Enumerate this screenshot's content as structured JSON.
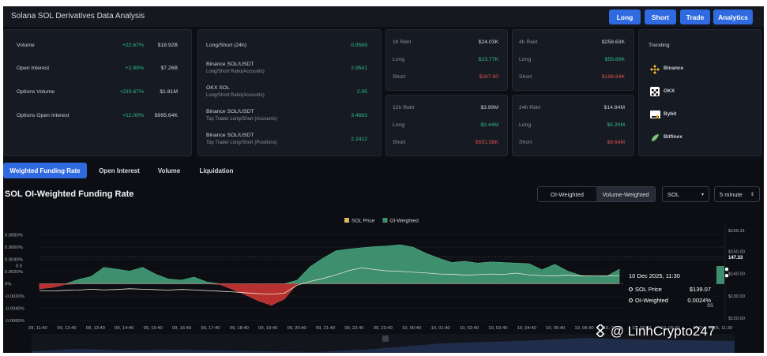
{
  "app": {
    "title": "Solana SOL Derivatives Data Analysis"
  },
  "top_buttons": [
    "Long",
    "Short",
    "Trade",
    "Analytics"
  ],
  "market": [
    {
      "label": "Volume",
      "change": "+22.67%",
      "value": "$18.92B"
    },
    {
      "label": "Open Interest",
      "change": "+2.89%",
      "value": "$7.26B"
    },
    {
      "label": "Options Volume",
      "change": "+233.67%",
      "value": "$1.81M"
    },
    {
      "label": "Options Open Interest",
      "change": "+12.00%",
      "value": "$995.64K"
    }
  ],
  "ratios": [
    {
      "title": "Long/Short (24h)",
      "subtitle": "",
      "value": "0.9569"
    },
    {
      "title": "Binance SOL/USDT",
      "subtitle": "Long/Short Ratio(Accounts)",
      "value": "2.9541"
    },
    {
      "title": "OKX SOL",
      "subtitle": "Long/Short Ratio(Accounts)",
      "value": "2.95"
    },
    {
      "title": "Binance SOL/USDT",
      "subtitle": "Top Trader Long/Short (Accounts)",
      "value": "3.4683"
    },
    {
      "title": "Binance SOL/USDT",
      "subtitle": "Top Trader Long/Short (Positions)",
      "value": "2.2412"
    }
  ],
  "rekt": [
    {
      "label": "1h Rekt",
      "total": "$24.03K",
      "long_label": "Long",
      "long": "$23.77K",
      "short_label": "Short",
      "short": "$267.90"
    },
    {
      "label": "4h Rekt",
      "total": "$258.63K",
      "long_label": "Long",
      "long": "$59.80K",
      "short_label": "Short",
      "short": "$198.84K"
    },
    {
      "label": "12h Rekt",
      "total": "$3.99M",
      "long_label": "Long",
      "long": "$3.44M",
      "short_label": "Short",
      "short": "$551.58K"
    },
    {
      "label": "24h Rekt",
      "total": "$14.84M",
      "long_label": "Long",
      "long": "$5.20M",
      "short_label": "Short",
      "short": "$9.64M"
    }
  ],
  "trending": {
    "title": "Trending",
    "items": [
      {
        "name": "Binance",
        "icon": "binance-logo-icon",
        "color": "#f3ba2f"
      },
      {
        "name": "OKX",
        "icon": "okx-logo-icon",
        "color": "#ffffff"
      },
      {
        "name": "Bybit",
        "icon": "bybit-logo-icon",
        "color": "#ffffff"
      },
      {
        "name": "Bitfinex",
        "icon": "bitfinex-logo-icon",
        "color": "#7bc37a"
      }
    ]
  },
  "tabs": [
    "Weighted Funding Rate",
    "Open Interest",
    "Volume",
    "Liquidation"
  ],
  "chart_section": {
    "title": "SOL OI-Weighted Funding Rate",
    "toggle": [
      "OI-Weighted",
      "Volume-Weighted"
    ],
    "coin_select": "SOL",
    "interval_select": "5 minute"
  },
  "tooltip": {
    "date": "10 Dec 2025, 11:30",
    "rows": [
      {
        "label": "SOL Price",
        "value": "$139.07"
      },
      {
        "label": "OI-Weighted",
        "value": "0.0024%"
      }
    ],
    "edge_text": "SS"
  },
  "watermark": "@ LinhCrypto247",
  "colors": {
    "accent": "#2f6ae0",
    "positive": "#2fbf8a",
    "negative": "#e05252",
    "area_pos": "#3d8f6e",
    "area_neg": "#b8302f"
  },
  "chart_data": {
    "type": "area",
    "title": "",
    "legend": [
      "SOL Price",
      "OI-Weighted"
    ],
    "legend_colors": [
      "#d9b868",
      "#3d8f6e"
    ],
    "legend_position": "top-center",
    "x_ticks": [
      "09, 11:40",
      "09, 12:40",
      "09, 13:40",
      "09, 14:40",
      "09, 15:40",
      "09, 16:40",
      "09, 17:40",
      "09, 18:40",
      "09, 19:40",
      "09, 20:40",
      "09, 21:40",
      "09, 22:40",
      "09, 23:40",
      "10, 00:40",
      "10, 01:40",
      "10, 02:40",
      "10, 03:40",
      "10, 04:40",
      "10, 05:40",
      "10, 06:40",
      "10, 07:40",
      "10, 08:40",
      "10, 09:40",
      "10 Dec 2025, 11:30"
    ],
    "y_left_ticks": [
      "0.0080%",
      "0.0060%",
      "0.0040%",
      "0.0020%",
      "0%",
      "-0.0020%",
      "-0.0040%",
      "-0.0060%"
    ],
    "y_left_extra_tick": "0.0",
    "y_left_range": [
      -0.006,
      0.009
    ],
    "y_right_ticks": [
      "$159.31",
      "$150.00",
      "$140.00",
      "$130.00",
      "$120.00"
    ],
    "y_right_current": "147.33",
    "y_right_range": [
      119,
      160
    ],
    "series": [
      {
        "name": "OI-Weighted",
        "unit": "%",
        "values": [
          -0.0008,
          -0.0006,
          -0.0001,
          0.0007,
          0.0012,
          0.0027,
          0.0024,
          0.0021,
          0.0027,
          0.0016,
          0.0008,
          0.0006,
          0.0011,
          0.0003,
          -0.0001,
          -0.0009,
          -0.0018,
          -0.0028,
          -0.0035,
          -0.0025,
          0.0006,
          0.0028,
          0.0042,
          0.0054,
          0.0057,
          0.0059,
          0.0061,
          0.0062,
          0.0064,
          0.006,
          0.005,
          0.0042,
          0.0035,
          0.0037,
          0.0034,
          0.0036,
          0.0035,
          0.0034,
          0.0033,
          0.0023,
          0.0032,
          0.0021,
          0.0014,
          0.0012,
          0.0012,
          0.0024
        ]
      },
      {
        "name": "SOL Price",
        "unit": "$",
        "values": [
          132.4,
          132.2,
          132.5,
          132.6,
          133.0,
          132.7,
          132.9,
          133.2,
          133.0,
          132.8,
          132.6,
          132.9,
          132.7,
          132.4,
          132.1,
          131.8,
          131.4,
          131.0,
          130.8,
          131.2,
          134.8,
          136.5,
          137.8,
          139.4,
          141.3,
          142.6,
          141.8,
          141.2,
          141.0,
          140.6,
          140.3,
          139.8,
          139.7,
          139.3,
          139.5,
          139.8,
          139.6,
          140.2,
          139.4,
          139.1,
          139.0,
          139.3,
          138.9,
          139.1,
          139.0,
          139.07
        ]
      }
    ]
  }
}
